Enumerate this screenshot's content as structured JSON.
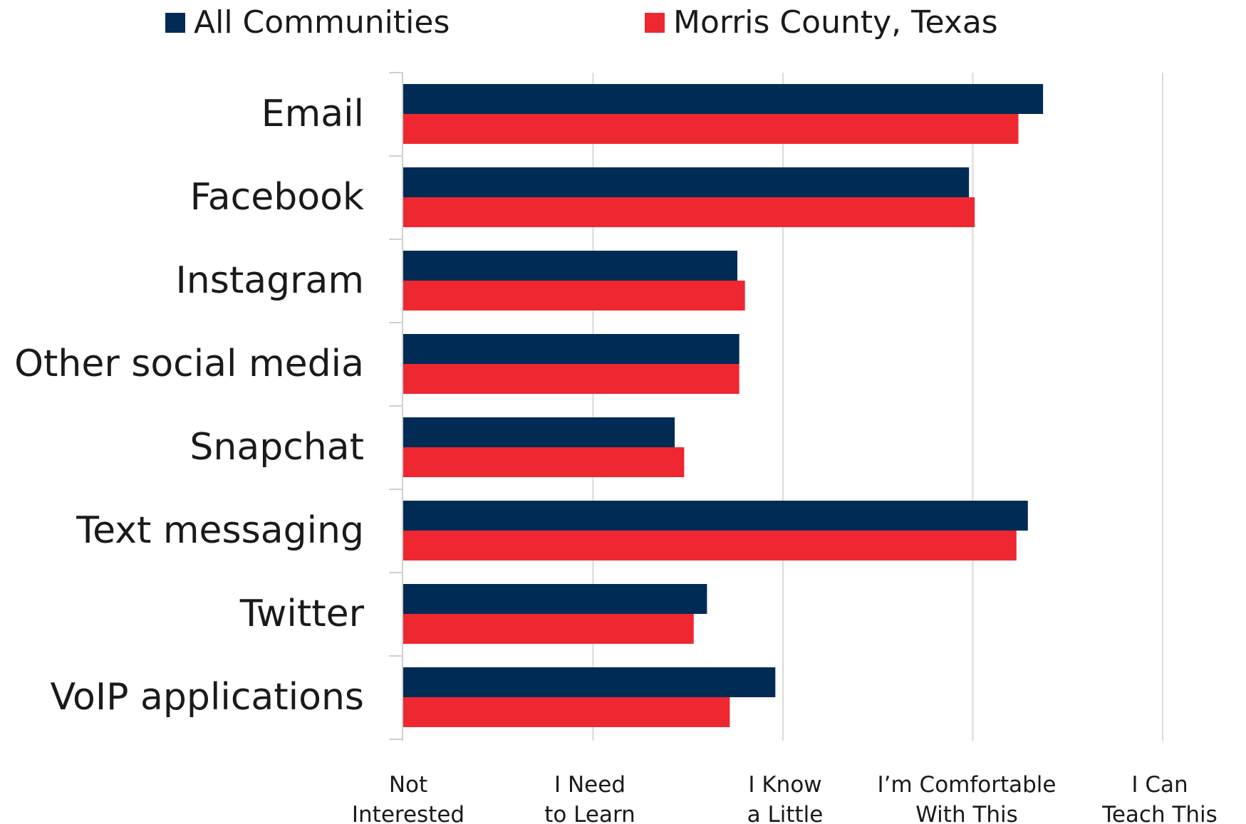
{
  "chart_data": {
    "type": "bar",
    "orientation": "horizontal",
    "categories": [
      "Email",
      "Facebook",
      "Instagram",
      "Other social media",
      "Snapchat",
      "Text messaging",
      "Twitter",
      "VoIP applications"
    ],
    "series": [
      {
        "name": "All Communities",
        "color": "#002b54",
        "values": [
          3.37,
          2.98,
          1.76,
          1.77,
          1.43,
          3.29,
          1.6,
          1.96
        ]
      },
      {
        "name": "Morris County, Texas",
        "color": "#ee2730",
        "values": [
          3.24,
          3.01,
          1.8,
          1.77,
          1.48,
          3.23,
          1.53,
          1.72
        ]
      }
    ],
    "x_tick_labels": [
      [
        "Not",
        "Interested"
      ],
      [
        "I Need",
        "to Learn"
      ],
      [
        "I Know",
        "a Little"
      ],
      [
        "I’m Comfortable",
        "With This"
      ],
      [
        "I Can",
        "Teach This"
      ]
    ],
    "xlim": [
      0,
      4
    ],
    "grid": true,
    "legend_position": "top"
  }
}
